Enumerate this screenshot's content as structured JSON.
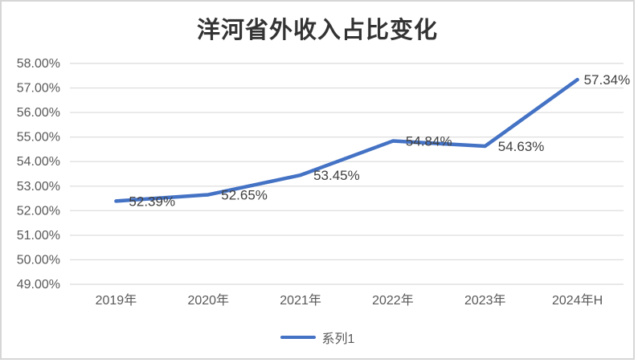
{
  "chart_data": {
    "type": "line",
    "title": "洋河省外收入占比变化",
    "categories": [
      "2019年",
      "2020年",
      "2021年",
      "2022年",
      "2023年",
      "2024年H"
    ],
    "series": [
      {
        "name": "系列1",
        "values": [
          52.39,
          52.65,
          53.45,
          54.84,
          54.63,
          57.34
        ],
        "data_labels": [
          "52.39%",
          "52.65%",
          "53.45%",
          "54.84%",
          "54.63%",
          "57.34%"
        ],
        "color": "#4472C4"
      }
    ],
    "xlabel": "",
    "ylabel": "",
    "ylim": [
      49,
      58
    ],
    "ytick_step": 1,
    "ytick_labels": [
      "58.00%",
      "57.00%",
      "56.00%",
      "55.00%",
      "54.00%",
      "53.00%",
      "52.00%",
      "51.00%",
      "50.00%",
      "49.00%"
    ],
    "grid": true,
    "legend_position": "bottom",
    "colors": {
      "gridline": "#e0e0e0",
      "axis_text": "#595959",
      "data_label_text": "#404040",
      "title_text": "#333333",
      "frame_border": "#d6d6d6",
      "background": "#ffffff"
    }
  }
}
